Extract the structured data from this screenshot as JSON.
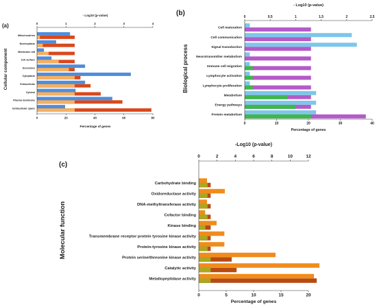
{
  "chart_data": [
    {
      "panel_label": "(a)",
      "type": "bar",
      "orientation": "horizontal",
      "ylabel": "Cellular component",
      "xlabel": "Percentage of genes",
      "x2label": "- Log10 (p-value)",
      "categories": [
        "Mitochondrion",
        "Nucleoplasm",
        "Membrane raft",
        "Cell surface",
        "Exosomes",
        "Cytoplasm",
        "Extracellular",
        "Cytosol",
        "Plasma membrane",
        "Extracellular space"
      ],
      "xlim": [
        0,
        80
      ],
      "xticks": [
        0,
        20,
        40,
        60,
        80
      ],
      "x2lim": [
        0,
        4
      ],
      "x2ticks": [
        0,
        1,
        2,
        3,
        4
      ],
      "series": [
        {
          "axis": "top",
          "values": [
            1.14,
            0.66,
            0.24,
            0.5,
            1.66,
            3.24,
            1.66,
            1.33,
            2.6,
            0.97
          ],
          "color": "#4f8ddb"
        },
        {
          "axis": "bottom",
          "values": [
            2,
            4,
            8,
            15,
            22,
            30,
            37,
            44,
            59,
            79
          ],
          "color": "#d9481c"
        },
        {
          "axis": "top",
          "values": [
            1.3,
            1.3,
            1.3,
            1.3,
            1.3,
            1.3,
            1.3,
            1.3,
            1.3,
            1.3
          ],
          "color": "#d9481c"
        }
      ],
      "overlap_color": "#f5b161",
      "grid": false
    },
    {
      "panel_label": "(b)",
      "type": "bar",
      "orientation": "horizontal",
      "ylabel": "Biological process",
      "xlabel": "Percentage of genes",
      "x2label": "- Log10 (p-value)",
      "categories": [
        "Cell maturation",
        "Cell communication",
        "Signal transduction",
        "Neurotransmitter metabolism",
        "Immune cell migration",
        "Lymphocyte activation",
        "Lymphocyte proliferation",
        "Metabolism",
        "Energy pathways",
        "Protein metabolism"
      ],
      "xlim": [
        0,
        40
      ],
      "xticks": [
        0,
        10,
        20,
        30,
        40
      ],
      "x2lim": [
        0,
        2.5
      ],
      "x2ticks": [
        "0",
        "0.5",
        "1",
        "1.5",
        "2",
        "2.5"
      ],
      "series": [
        {
          "axis": "top",
          "values": [
            0.1,
            2.1,
            2.2,
            0.1,
            0.1,
            0.1,
            0.1,
            1.4,
            1.4,
            1.4
          ],
          "color": "#7ec6ea"
        },
        {
          "axis": "bottom",
          "values": [
            0,
            0,
            0,
            0,
            2.5,
            2.5,
            2.5,
            13.5,
            16,
            38
          ],
          "color": "#b55ac9"
        },
        {
          "axis": "top",
          "values": [
            1.3,
            1.3,
            1.3,
            1.3,
            1.3,
            1.3,
            1.3,
            1.3,
            1.3,
            1.3
          ],
          "color": "#b55ac9"
        }
      ],
      "overlap_color": "#3db84b",
      "grid": false
    },
    {
      "panel_label": "(c)",
      "type": "bar",
      "orientation": "horizontal",
      "ylabel": "Molecular function",
      "xlabel": "Percentage of genes",
      "x2label": "-Log10 (p-value)",
      "categories": [
        "Carbohydrate binding",
        "Oxidoreductase activity",
        "DNA-methyltransferase activity",
        "Cofactor binding",
        "Kinase binding",
        "Transmembrane receptor protein tyrosine kinase activity",
        "Protein-tyrosine kinase activity",
        "Protein serine/threonine kinase activity",
        "Catalytic activity",
        "Metallopeptidase activity"
      ],
      "xlim": [
        0,
        20
      ],
      "xticks": [
        0,
        5,
        10,
        15,
        20
      ],
      "x2lim": [
        0,
        12
      ],
      "x2ticks": [
        0,
        2,
        4,
        6,
        8,
        10,
        12
      ],
      "series": [
        {
          "axis": "top",
          "values": [
            0.9,
            2.85,
            0.9,
            0.7,
            1.95,
            2.8,
            2.8,
            8.4,
            13.2,
            12.6
          ],
          "color": "#f08c1c"
        },
        {
          "axis": "bottom",
          "values": [
            1.6,
            1.6,
            1.6,
            1.6,
            1.2,
            1.6,
            1.6,
            6.0,
            6.9,
            21.5
          ],
          "color": "#b64a12"
        },
        {
          "axis": "top",
          "values": [
            1.3,
            1.3,
            1.3,
            1.3,
            1.3,
            1.3,
            1.3,
            1.3,
            1.3,
            1.3
          ],
          "color": "#b64a12"
        }
      ],
      "overlap_color": "#a9a81e",
      "grid": false
    }
  ]
}
